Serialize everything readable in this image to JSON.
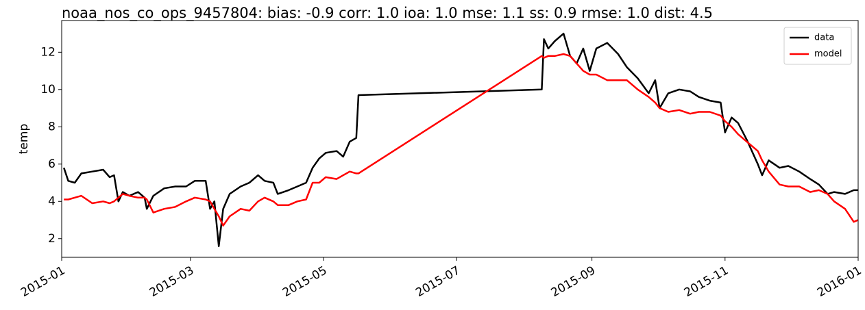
{
  "chart_data": {
    "type": "line",
    "title": "noaa_nos_co_ops_9457804: bias: -0.9  corr: 1.0  ioa: 1.0  mse: 1.1  ss: 0.9  rmse: 1.0  dist: 4.5",
    "y_label": "temp",
    "x": [
      1,
      3,
      6,
      9,
      14,
      19,
      22,
      24,
      26,
      28,
      31,
      35,
      38,
      39,
      42,
      47,
      52,
      57,
      61,
      66,
      68,
      70,
      72,
      74,
      77,
      82,
      86,
      90,
      93,
      97,
      99,
      104,
      108,
      112,
      115,
      118,
      121,
      126,
      129,
      132,
      135,
      136,
      220,
      221,
      223,
      226,
      230,
      233,
      236,
      239,
      242,
      245,
      250,
      255,
      259,
      264,
      269,
      272,
      274,
      278,
      283,
      288,
      292,
      297,
      302,
      304,
      307,
      310,
      314,
      319,
      321,
      324,
      329,
      333,
      338,
      343,
      347,
      351,
      354,
      359,
      363,
      365
    ],
    "series": [
      {
        "name": "data",
        "color": "#000000",
        "values": [
          5.8,
          5.1,
          5.0,
          5.5,
          5.6,
          5.7,
          5.3,
          5.4,
          4.0,
          4.5,
          4.3,
          4.5,
          4.2,
          3.6,
          4.3,
          4.7,
          4.8,
          4.8,
          5.1,
          5.1,
          3.6,
          4.0,
          1.6,
          3.6,
          4.4,
          4.8,
          5.0,
          5.4,
          5.1,
          5.0,
          4.4,
          4.6,
          4.8,
          5.0,
          5.8,
          6.3,
          6.6,
          6.7,
          6.4,
          7.2,
          7.4,
          9.7,
          10.0,
          12.7,
          12.2,
          12.6,
          13.0,
          11.8,
          11.4,
          12.2,
          11.0,
          12.2,
          12.5,
          11.9,
          11.2,
          10.6,
          9.8,
          10.5,
          9.0,
          9.8,
          10.0,
          9.9,
          9.6,
          9.4,
          9.3,
          7.7,
          8.5,
          8.2,
          7.3,
          6.0,
          5.4,
          6.2,
          5.8,
          5.9,
          5.6,
          5.2,
          4.9,
          4.4,
          4.5,
          4.4,
          4.6,
          4.6
        ]
      },
      {
        "name": "model",
        "color": "#ff0000",
        "values": [
          4.1,
          4.1,
          4.2,
          4.3,
          3.9,
          4.0,
          3.9,
          4.0,
          4.2,
          4.4,
          4.3,
          4.2,
          4.2,
          4.1,
          3.4,
          3.6,
          3.7,
          4.0,
          4.2,
          4.1,
          4.0,
          3.6,
          3.2,
          2.7,
          3.2,
          3.6,
          3.5,
          4.0,
          4.2,
          4.0,
          3.8,
          3.8,
          4.0,
          4.1,
          5.0,
          5.0,
          5.3,
          5.2,
          5.4,
          5.6,
          5.5,
          5.5,
          11.8,
          11.7,
          11.8,
          11.8,
          11.9,
          11.8,
          11.4,
          11.0,
          10.8,
          10.8,
          10.5,
          10.5,
          10.5,
          10.0,
          9.6,
          9.3,
          9.0,
          8.8,
          8.9,
          8.7,
          8.8,
          8.8,
          8.6,
          8.3,
          8.0,
          7.6,
          7.2,
          6.7,
          6.2,
          5.6,
          4.9,
          4.8,
          4.8,
          4.5,
          4.6,
          4.4,
          4.0,
          3.6,
          2.9,
          3.0
        ]
      }
    ],
    "xlim": [
      0,
      365
    ],
    "xticks": [
      {
        "value": 0,
        "label": "2015-01"
      },
      {
        "value": 59,
        "label": "2015-03"
      },
      {
        "value": 120,
        "label": "2015-05"
      },
      {
        "value": 181,
        "label": "2015-07"
      },
      {
        "value": 243,
        "label": "2015-09"
      },
      {
        "value": 304,
        "label": "2015-11"
      },
      {
        "value": 365,
        "label": "2016-01"
      }
    ],
    "ylim": [
      1.0,
      13.7
    ],
    "yticks": [
      2,
      4,
      6,
      8,
      10,
      12
    ],
    "legend": "upper right"
  }
}
